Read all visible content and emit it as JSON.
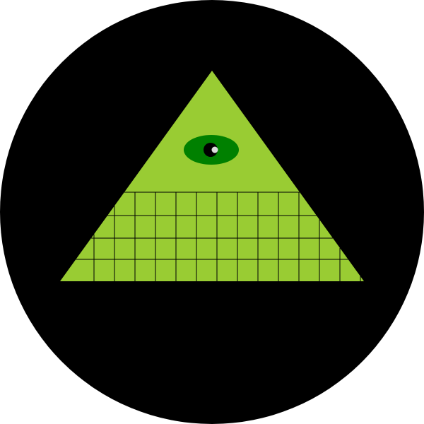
{
  "illustration": {
    "subject": "eye-of-providence-pyramid",
    "colors": {
      "page_background": "#ffffff",
      "disc": "#000000",
      "pyramid": "#99cc33",
      "eye_white": "#008000",
      "iris": "#000000",
      "highlight": "#dddddd",
      "grid_lines": "#000000"
    }
  }
}
